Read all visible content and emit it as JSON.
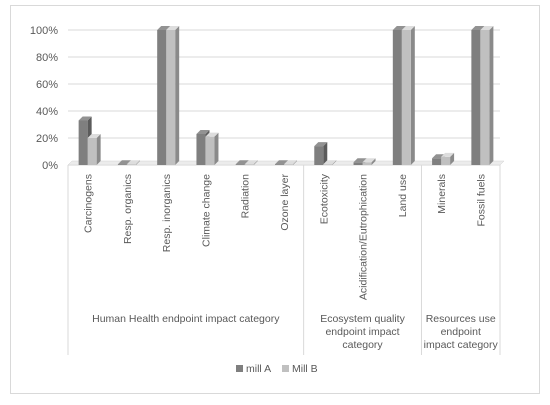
{
  "chart_data": {
    "type": "bar",
    "categories": [
      "Carcinogens",
      "Resp. organics",
      "Resp. inorganics",
      "Climate change",
      "Radiation",
      "Ozone layer",
      "Ecotoxicity",
      "Acidification/Eutrophication",
      "Land use",
      "Minerals",
      "Fossil fuels"
    ],
    "series": [
      {
        "name": "mill A",
        "values": [
          33,
          0.3,
          100,
          23,
          0.2,
          0.2,
          14,
          2,
          100,
          5,
          100
        ],
        "color": "#7f7f7f"
      },
      {
        "name": "Mill B",
        "values": [
          20,
          0.2,
          100,
          21,
          0.2,
          0.2,
          0.5,
          2,
          100,
          6,
          100
        ],
        "color": "#c0c0c0"
      }
    ],
    "groups": [
      {
        "label_lines": [
          "Human Health endpoint impact category"
        ],
        "start": 0,
        "end": 5
      },
      {
        "label_lines": [
          "Ecosystem quality",
          "endpoint impact",
          "category"
        ],
        "start": 6,
        "end": 8
      },
      {
        "label_lines": [
          "Resources use",
          "endpoint",
          "impact category"
        ],
        "start": 9,
        "end": 10
      }
    ],
    "y_ticks": [
      "0%",
      "20%",
      "40%",
      "60%",
      "80%",
      "100%"
    ],
    "ylim": [
      0,
      100
    ],
    "grid": true,
    "legend_position": "bottom"
  }
}
